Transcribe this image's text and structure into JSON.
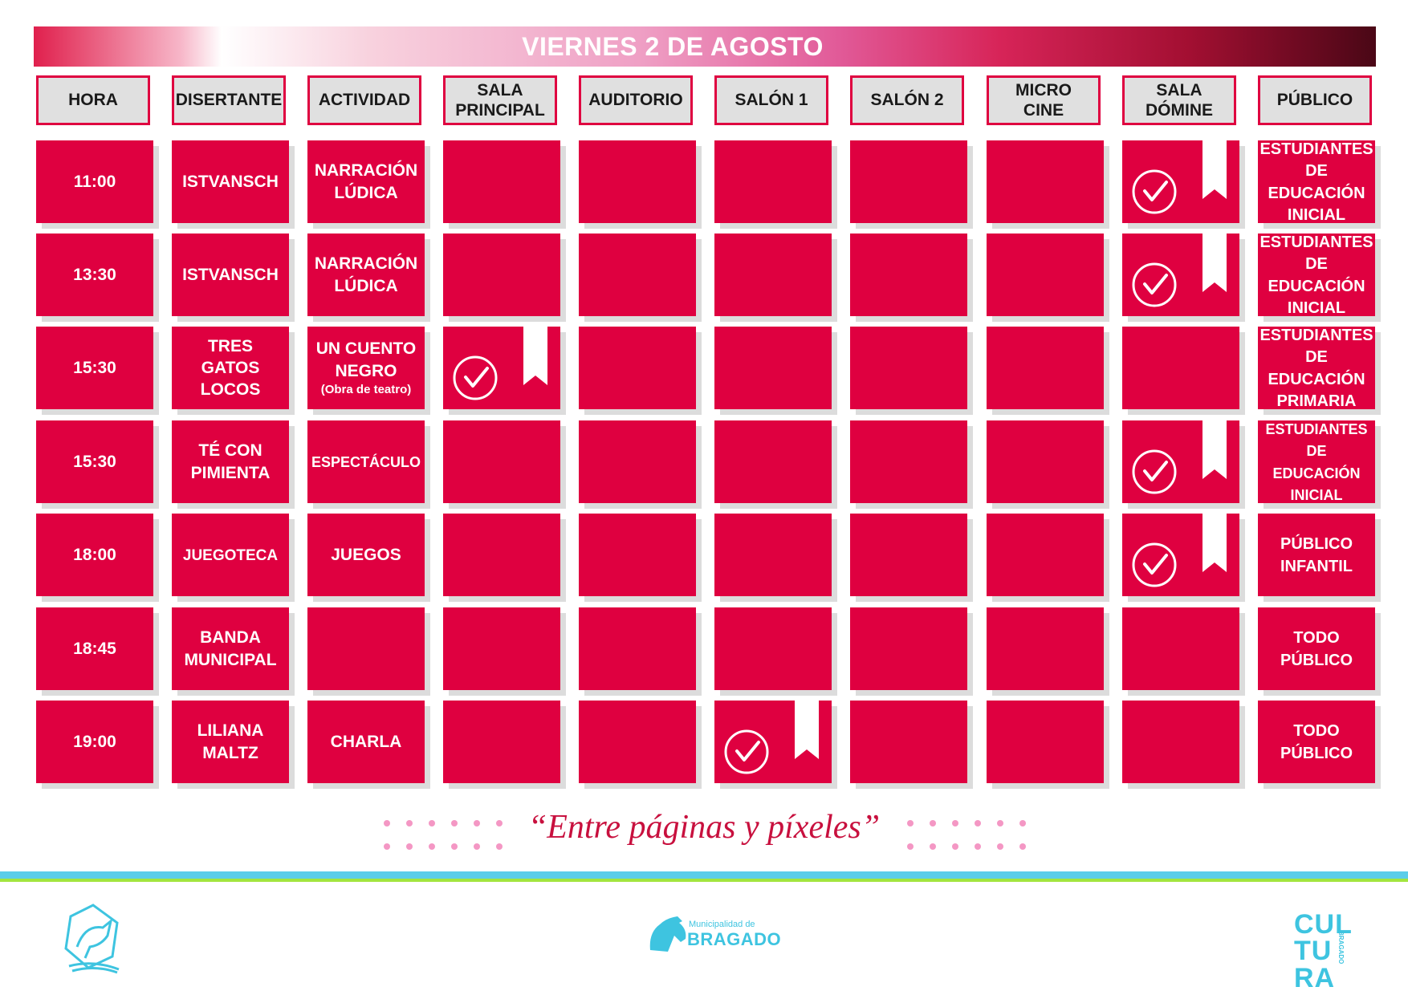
{
  "title": "VIERNES 2 DE AGOSTO",
  "headers": [
    "HORA",
    "DISERTANTE",
    "ACTIVIDAD",
    "SALA\nPRINCIPAL",
    "AUDITORIO",
    "SALÓN 1",
    "SALÓN 2",
    "MICRO\nCINE",
    "SALA\nDÓMINE",
    "PÚBLICO"
  ],
  "rows": [
    {
      "hora": "11:00",
      "disertante": "ISTVANSCH",
      "actividad": "NARRACIÓN\nLÚDICA",
      "actividad_sub": "",
      "sala_index": 8,
      "publico": "ESTUDIANTES\nDE\nEDUCACIÓN\nINICIAL"
    },
    {
      "hora": "13:30",
      "disertante": "ISTVANSCH",
      "actividad": "NARRACIÓN\nLÚDICA",
      "actividad_sub": "",
      "sala_index": 8,
      "publico": "ESTUDIANTES\nDE\nEDUCACIÓN\nINICIAL"
    },
    {
      "hora": "15:30",
      "disertante": "TRES\nGATOS\nLOCOS",
      "actividad": "UN CUENTO\nNEGRO",
      "actividad_sub": "(Obra de teatro)",
      "sala_index": 3,
      "publico": "ESTUDIANTES\nDE\nEDUCACIÓN\nPRIMARIA"
    },
    {
      "hora": "15:30",
      "disertante": "TÉ CON\nPIMIENTA",
      "actividad": "ESPECTÁCULO",
      "actividad_sub": "",
      "sala_index": 8,
      "publico": "ESTUDIANTES\nDE\nEDUCACIÓN\nINICIAL"
    },
    {
      "hora": "18:00",
      "disertante": "JUEGOTECA",
      "actividad": "JUEGOS",
      "actividad_sub": "",
      "sala_index": 8,
      "publico": "PÚBLICO\nINFANTIL"
    },
    {
      "hora": "18:45",
      "disertante": "BANDA\nMUNICIPAL",
      "actividad": "",
      "actividad_sub": "",
      "sala_index": null,
      "publico": "TODO\nPÚBLICO"
    },
    {
      "hora": "19:00",
      "disertante": "LILIANA\nMALTZ",
      "actividad": "CHARLA",
      "actividad_sub": "",
      "sala_index": 5,
      "publico": "TODO\nPÚBLICO"
    }
  ],
  "slogan": "“Entre páginas y píxeles”",
  "footer": {
    "municipal_small": "Municipalidad de",
    "municipal_name": "BRAGADO",
    "cultura": "CUL\nTU\nRA",
    "cultura_vertical": "BRAGADO"
  },
  "colors": {
    "cell": "#df0040",
    "header_bg": "#e0e0e0",
    "accent": "#3ec4e0"
  },
  "icons": {
    "selected_marker": "check-circle-icon",
    "bookmark": "bookmark-ribbon-icon"
  }
}
